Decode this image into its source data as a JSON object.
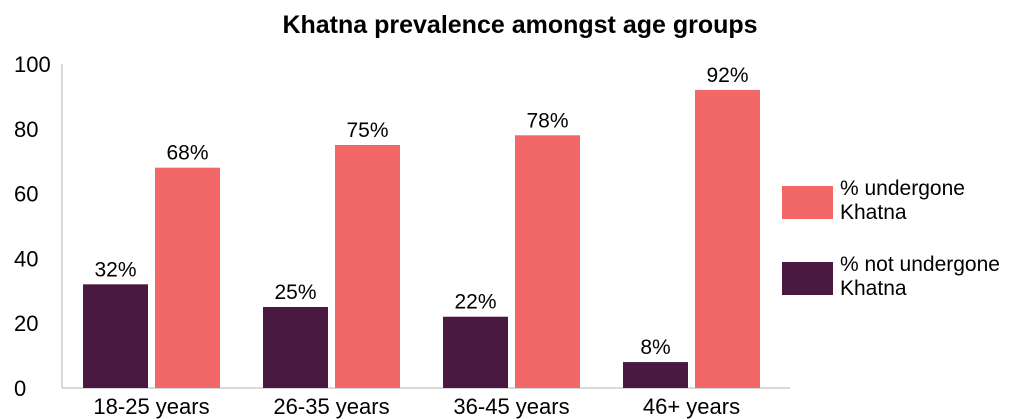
{
  "chart_data": {
    "type": "bar",
    "title": "Khatna prevalence amongst age groups",
    "xlabel": "",
    "ylabel": "",
    "ylim": [
      0,
      100
    ],
    "yticks": [
      0,
      20,
      40,
      60,
      80,
      100
    ],
    "grid": false,
    "legend_position": "right",
    "categories": [
      "18-25 years",
      "26-35 years",
      "36-45 years",
      "46+ years"
    ],
    "series": [
      {
        "name": "% not undergone Khatna",
        "values": [
          32,
          25,
          22,
          8
        ],
        "labels": [
          "32%",
          "25%",
          "22%",
          "8%"
        ],
        "color": "#4a1942"
      },
      {
        "name": "% undergone Khatna",
        "values": [
          68,
          75,
          78,
          92
        ],
        "labels": [
          "68%",
          "75%",
          "78%",
          "92%"
        ],
        "color": "#f26868"
      }
    ],
    "legend_order": [
      1,
      0
    ],
    "legend_lines": [
      [
        "% undergone",
        "Khatna"
      ],
      [
        "% not undergone",
        "Khatna"
      ]
    ]
  }
}
